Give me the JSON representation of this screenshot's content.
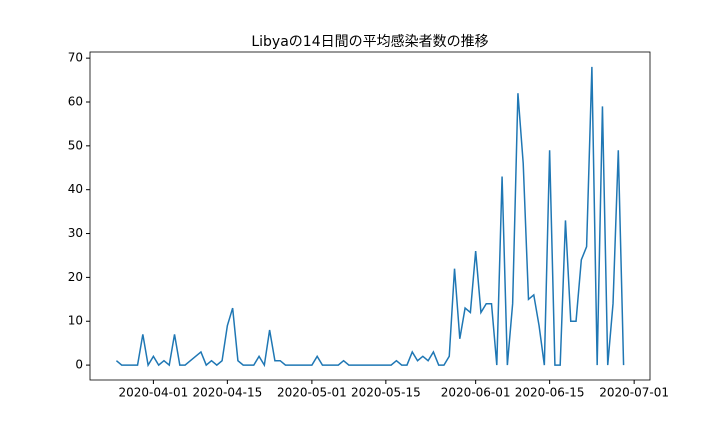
{
  "chart_data": {
    "type": "line",
    "title": "Libyaの14日間の平均感染者数の推移",
    "x": [
      "2020-03-25",
      "2020-03-26",
      "2020-03-27",
      "2020-03-28",
      "2020-03-29",
      "2020-03-30",
      "2020-03-31",
      "2020-04-01",
      "2020-04-02",
      "2020-04-03",
      "2020-04-04",
      "2020-04-05",
      "2020-04-06",
      "2020-04-07",
      "2020-04-08",
      "2020-04-09",
      "2020-04-10",
      "2020-04-11",
      "2020-04-12",
      "2020-04-13",
      "2020-04-14",
      "2020-04-15",
      "2020-04-16",
      "2020-04-17",
      "2020-04-18",
      "2020-04-19",
      "2020-04-20",
      "2020-04-21",
      "2020-04-22",
      "2020-04-23",
      "2020-04-24",
      "2020-04-25",
      "2020-04-26",
      "2020-04-27",
      "2020-04-28",
      "2020-04-29",
      "2020-04-30",
      "2020-05-01",
      "2020-05-02",
      "2020-05-03",
      "2020-05-04",
      "2020-05-05",
      "2020-05-06",
      "2020-05-07",
      "2020-05-08",
      "2020-05-09",
      "2020-05-10",
      "2020-05-11",
      "2020-05-12",
      "2020-05-13",
      "2020-05-14",
      "2020-05-15",
      "2020-05-16",
      "2020-05-17",
      "2020-05-18",
      "2020-05-19",
      "2020-05-20",
      "2020-05-21",
      "2020-05-22",
      "2020-05-23",
      "2020-05-24",
      "2020-05-25",
      "2020-05-26",
      "2020-05-27",
      "2020-05-28",
      "2020-05-29",
      "2020-05-30",
      "2020-05-31",
      "2020-06-01",
      "2020-06-02",
      "2020-06-03",
      "2020-06-04",
      "2020-06-05",
      "2020-06-06",
      "2020-06-07",
      "2020-06-08",
      "2020-06-09",
      "2020-06-10",
      "2020-06-11",
      "2020-06-12",
      "2020-06-13",
      "2020-06-14",
      "2020-06-15",
      "2020-06-16",
      "2020-06-17",
      "2020-06-18",
      "2020-06-19",
      "2020-06-20",
      "2020-06-21",
      "2020-06-22",
      "2020-06-23",
      "2020-06-24",
      "2020-06-25",
      "2020-06-26",
      "2020-06-27",
      "2020-06-28",
      "2020-06-29"
    ],
    "values": [
      1,
      0,
      0,
      0,
      0,
      7,
      0,
      2,
      0,
      1,
      0,
      7,
      0,
      0,
      1,
      2,
      3,
      0,
      1,
      0,
      1,
      9,
      13,
      1,
      0,
      0,
      0,
      2,
      0,
      8,
      1,
      1,
      0,
      0,
      0,
      0,
      0,
      0,
      2,
      0,
      0,
      0,
      0,
      1,
      0,
      0,
      0,
      0,
      0,
      0,
      0,
      0,
      0,
      1,
      0,
      0,
      3,
      1,
      2,
      1,
      3,
      0,
      0,
      2,
      22,
      6,
      13,
      12,
      26,
      12,
      14,
      14,
      0,
      43,
      0,
      14,
      62,
      46,
      15,
      16,
      9,
      0,
      49,
      0,
      0,
      33,
      10,
      10,
      24,
      27,
      68,
      0,
      59,
      0,
      14,
      49,
      0
    ],
    "color": "#1f77b4",
    "xlim": [
      "2020-03-20",
      "2020-07-04"
    ],
    "xticks": [
      "2020-04-01",
      "2020-04-15",
      "2020-05-01",
      "2020-05-15",
      "2020-06-01",
      "2020-06-15",
      "2020-07-01"
    ],
    "ylim": [
      -3.4,
      71.4
    ],
    "yticks": [
      0,
      10,
      20,
      30,
      40,
      50,
      60,
      70
    ]
  }
}
